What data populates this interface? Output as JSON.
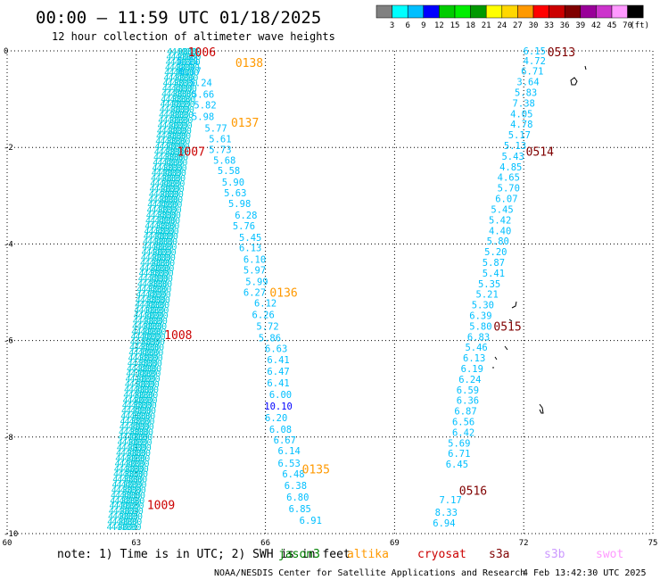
{
  "header": {
    "title": "00:00 – 11:59 UTC 01/18/2025",
    "subtitle": "12 hour collection of altimeter wave heights"
  },
  "colorbar": {
    "colors": [
      "#808080",
      "#00ffff",
      "#00bfff",
      "#0000ff",
      "#00cc00",
      "#00ee00",
      "#009900",
      "#ffff00",
      "#ffd700",
      "#ff9900",
      "#ff0000",
      "#cc0000",
      "#800000",
      "#990099",
      "#cc33cc",
      "#ff99ff",
      "#000000"
    ],
    "labels": [
      "3",
      "6",
      "9",
      "12",
      "15",
      "18",
      "21",
      "24",
      "27",
      "30",
      "33",
      "36",
      "39",
      "42",
      "45",
      "70"
    ],
    "unit": "(ft)"
  },
  "footer": {
    "note_prefix": "note: 1) Time is in UTC; 2) SWH is in feet",
    "satellites": [
      {
        "name": "jason3",
        "color": "#008000"
      },
      {
        "name": "altika",
        "color": "#ff9900"
      },
      {
        "name": "cryosat",
        "color": "#cc0000"
      },
      {
        "name": "s3a",
        "color": "#800000"
      },
      {
        "name": "s3b",
        "color": "#cc99ff"
      },
      {
        "name": "swot",
        "color": "#ff99ff"
      }
    ],
    "credit": "NOAA/NESDIS Center for Satellite Applications and Research",
    "timestamp": "4 Feb 13:42:30 UTC 2025"
  },
  "chart_data": {
    "type": "scatter",
    "xlim": [
      60,
      75
    ],
    "ylim": [
      -10,
      0
    ],
    "xticks": [
      "60",
      "63",
      "66",
      "69",
      "72",
      "75"
    ],
    "yticks": [
      "0",
      "-2",
      "-4",
      "-6",
      "-8",
      "-10"
    ],
    "grid": true,
    "swh_color": "#00bfff",
    "swh_color_high": "#0000ff",
    "time_labels": [
      {
        "t": "1006",
        "x": 64.2,
        "y": -0.02,
        "color": "#cc0000"
      },
      {
        "t": "0138",
        "x": 65.3,
        "y": -0.24,
        "color": "#ff9900"
      },
      {
        "t": "0137",
        "x": 65.2,
        "y": -1.48,
        "color": "#ff9900"
      },
      {
        "t": "1007",
        "x": 63.95,
        "y": -2.08,
        "color": "#cc0000"
      },
      {
        "t": "0136",
        "x": 66.1,
        "y": -5.0,
        "color": "#ff9900"
      },
      {
        "t": "1008",
        "x": 63.65,
        "y": -5.88,
        "color": "#cc0000"
      },
      {
        "t": "0135",
        "x": 66.85,
        "y": -8.66,
        "color": "#ff9900"
      },
      {
        "t": "1009",
        "x": 63.25,
        "y": -9.4,
        "color": "#cc0000"
      },
      {
        "t": "0513",
        "x": 72.55,
        "y": -0.02,
        "color": "#800000"
      },
      {
        "t": "0514",
        "x": 72.05,
        "y": -2.08,
        "color": "#800000"
      },
      {
        "t": "0515",
        "x": 71.3,
        "y": -5.7,
        "color": "#800000"
      },
      {
        "t": "0516",
        "x": 70.5,
        "y": -9.1,
        "color": "#800000"
      }
    ],
    "series": [
      {
        "name": "altika",
        "x": [
          64.2,
          64.25,
          64.5,
          64.55,
          64.6,
          64.55,
          64.85,
          64.95,
          64.95,
          65.05,
          65.15,
          65.25,
          65.3,
          65.4,
          65.55,
          65.5,
          65.65,
          65.65,
          65.75,
          65.75,
          65.8,
          65.75,
          66.0,
          65.95,
          66.05,
          66.1,
          66.25,
          66.3,
          66.3,
          66.3,
          66.35,
          66.3,
          66.25,
          66.35,
          66.45,
          66.55,
          66.55,
          66.65,
          66.7,
          66.75,
          66.8,
          67.05
        ],
        "y": [
          -0.2,
          -0.42,
          -0.66,
          -0.9,
          -1.12,
          -1.36,
          -1.6,
          -1.82,
          -2.04,
          -2.26,
          -2.48,
          -2.72,
          -2.94,
          -3.16,
          -3.4,
          -3.62,
          -3.86,
          -4.08,
          -4.32,
          -4.54,
          -4.78,
          -5.0,
          -5.22,
          -5.46,
          -5.7,
          -5.94,
          -6.16,
          -6.4,
          -6.64,
          -6.88,
          -7.12,
          -7.36,
          -7.6,
          -7.84,
          -8.06,
          -8.28,
          -8.54,
          -8.76,
          -9.0,
          -9.24,
          -9.48,
          -9.72
        ],
        "values": [
          "5.21",
          "6.17",
          "5.24",
          "5.66",
          "5.82",
          "5.98",
          "5.77",
          "5.61",
          "5.73",
          "5.68",
          "5.58",
          "5.90",
          "5.63",
          "5.98",
          "6.28",
          "5.76",
          "5.45",
          "6.13",
          "6.10",
          "5.97",
          "5.99",
          "6.27",
          "6.12",
          "6.26",
          "5.72",
          "5.86",
          "6.63",
          "6.41",
          "6.47",
          "6.41",
          "6.00",
          "10.10",
          "6.20",
          "6.08",
          "6.67",
          "6.14",
          "6.53",
          "6.48",
          "6.38",
          "6.80",
          "6.85",
          "6.91"
        ]
      },
      {
        "name": "s3a",
        "x": [
          72.25,
          72.25,
          72.2,
          72.1,
          72.05,
          72.0,
          71.95,
          71.95,
          71.9,
          71.8,
          71.75,
          71.7,
          71.65,
          71.65,
          71.6,
          71.5,
          71.45,
          71.45,
          71.4,
          71.35,
          71.3,
          71.3,
          71.2,
          71.15,
          71.05,
          71.0,
          71.0,
          70.95,
          70.9,
          70.85,
          70.8,
          70.75,
          70.7,
          70.7,
          70.65,
          70.6,
          70.6,
          70.5,
          70.5,
          70.45
        ],
        "y": [
          0.0,
          -0.2,
          -0.42,
          -0.64,
          -0.86,
          -1.08,
          -1.3,
          -1.52,
          -1.74,
          -1.96,
          -2.18,
          -2.4,
          -2.62,
          -2.84,
          -3.06,
          -3.28,
          -3.5,
          -3.72,
          -3.94,
          -4.16,
          -4.38,
          -4.6,
          -4.82,
          -5.04,
          -5.26,
          -5.48,
          -5.7,
          -5.92,
          -6.14,
          -6.36,
          -6.58,
          -6.8,
          -7.02,
          -7.24,
          -7.46,
          -7.68,
          -7.9,
          -8.12,
          -8.34,
          -8.56
        ],
        "values": [
          "6.15",
          "4.72",
          "6.71",
          "3.64",
          "5.83",
          "7.38",
          "4.05",
          "4.78",
          "5.17",
          "5.13",
          "5.43",
          "4.85",
          "4.65",
          "5.70",
          "6.07",
          "5.45",
          "5.42",
          "4.40",
          "5.80",
          "5.20",
          "5.87",
          "5.41",
          "5.35",
          "5.21",
          "5.30",
          "6.39",
          "5.80",
          "6.83",
          "5.46",
          "6.13",
          "6.19",
          "6.24",
          "6.59",
          "6.36",
          "6.87",
          "6.56",
          "6.42",
          "5.69",
          "6.71",
          "6.45"
        ]
      },
      {
        "name": "s3a-tail",
        "x": [
          70.3,
          70.2,
          70.15
        ],
        "y": [
          -9.3,
          -9.56,
          -9.78
        ],
        "values": [
          "7.17",
          "8.33",
          "6.94"
        ]
      }
    ],
    "dense_track": {
      "name": "cryosat",
      "x_start": 64.0,
      "x_end": 62.6,
      "y_start": 0.0,
      "y_end": -9.85,
      "value": "4.30",
      "columns": 4
    }
  }
}
